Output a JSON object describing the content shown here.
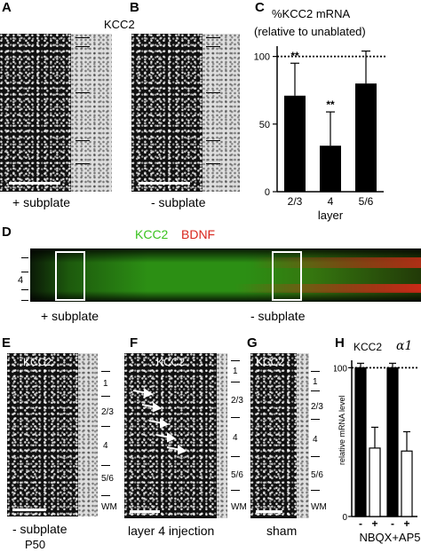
{
  "panels": {
    "A": {
      "letter": "A",
      "label": "+ subplate"
    },
    "B": {
      "letter": "B",
      "label": "- subplate"
    },
    "kcc2_header": "KCC2",
    "C": {
      "letter": "C",
      "title_line1": "%KCC2 mRNA",
      "title_line2": "(relative to unablated)"
    },
    "D": {
      "letter": "D",
      "legend_kcc2": "KCC2",
      "legend_bdnf": "BDNF",
      "layer_mark": "4",
      "left_label": "+ subplate",
      "right_label": "- subplate"
    },
    "E": {
      "letter": "E",
      "header": "KCC2",
      "label": "- subplate",
      "sublabel": "P50",
      "layers": [
        "1",
        "2/3",
        "4",
        "5/6",
        "WM"
      ]
    },
    "F": {
      "letter": "F",
      "header": "KCC2",
      "label": "layer 4 injection",
      "layers": [
        "1",
        "2/3",
        "4",
        "5/6",
        "WM"
      ]
    },
    "G": {
      "letter": "G",
      "header": "KCC2",
      "label": "sham",
      "layers": [
        "1",
        "2/3",
        "4",
        "5/6",
        "WM"
      ]
    },
    "H": {
      "letter": "H",
      "header_kcc2": "KCC2",
      "header_alpha": "α1",
      "ylabel": "relative mRNA level",
      "treatment": "NBQX+AP5",
      "sign_minus": "-",
      "sign_plus": "+"
    }
  },
  "colors": {
    "kcc2_green": "#39c21e",
    "bdnf_red": "#d9261c"
  },
  "chart_data": [
    {
      "panel": "C",
      "type": "bar",
      "title": "%KCC2 mRNA (relative to unablated)",
      "xlabel": "layer",
      "ylabel": "",
      "categories": [
        "2/3",
        "4",
        "5/6"
      ],
      "values": [
        71,
        34,
        80
      ],
      "errors": [
        24,
        25,
        24
      ],
      "significance": [
        "**",
        "**",
        ""
      ],
      "reference_line": 100,
      "ylim": [
        0,
        105
      ],
      "yticks": [
        0,
        50,
        100
      ]
    },
    {
      "panel": "H",
      "type": "bar",
      "title": "",
      "xlabel": "NBQX+AP5",
      "ylabel": "relative mRNA level",
      "groups": [
        "KCC2",
        "α1"
      ],
      "categories": [
        "-",
        "+",
        "-",
        "+"
      ],
      "values": [
        100,
        46,
        100,
        44
      ],
      "errors": [
        3,
        14,
        3,
        13
      ],
      "fills": [
        "black",
        "white",
        "black",
        "white"
      ],
      "reference_line": 100,
      "ylim": [
        0,
        105
      ],
      "yticks": [
        0,
        100
      ]
    }
  ]
}
